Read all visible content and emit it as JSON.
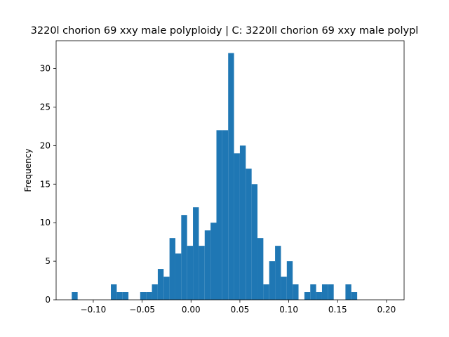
{
  "chart_data": {
    "type": "bar",
    "title": "3220l chorion 69 xxy male polyploidy | C: 3220ll chorion 69 xxy male polypl",
    "xlabel": "",
    "ylabel": "Frequency",
    "xlim": [
      -0.138,
      0.218
    ],
    "ylim": [
      0,
      33.6
    ],
    "xticks": [
      -0.1,
      -0.05,
      0.0,
      0.05,
      0.1,
      0.15,
      0.2
    ],
    "xtick_labels": [
      "−0.10",
      "−0.05",
      "0.00",
      "0.05",
      "0.10",
      "0.15",
      "0.20"
    ],
    "yticks": [
      0,
      5,
      10,
      15,
      20,
      25,
      30
    ],
    "ytick_labels": [
      "0",
      "5",
      "10",
      "15",
      "20",
      "25",
      "30"
    ],
    "bar_color": "#1f77b4",
    "grid": false,
    "bins": [
      {
        "x0": -0.122,
        "x1": -0.116,
        "value": 1
      },
      {
        "x0": -0.082,
        "x1": -0.076,
        "value": 2
      },
      {
        "x0": -0.076,
        "x1": -0.07,
        "value": 1
      },
      {
        "x0": -0.07,
        "x1": -0.064,
        "value": 1
      },
      {
        "x0": -0.052,
        "x1": -0.046,
        "value": 1
      },
      {
        "x0": -0.046,
        "x1": -0.04,
        "value": 1
      },
      {
        "x0": -0.04,
        "x1": -0.034,
        "value": 2
      },
      {
        "x0": -0.034,
        "x1": -0.028,
        "value": 4
      },
      {
        "x0": -0.028,
        "x1": -0.022,
        "value": 3
      },
      {
        "x0": -0.022,
        "x1": -0.016,
        "value": 8
      },
      {
        "x0": -0.016,
        "x1": -0.01,
        "value": 6
      },
      {
        "x0": -0.01,
        "x1": -0.004,
        "value": 11
      },
      {
        "x0": -0.004,
        "x1": 0.002,
        "value": 7
      },
      {
        "x0": 0.002,
        "x1": 0.008,
        "value": 12
      },
      {
        "x0": 0.008,
        "x1": 0.014,
        "value": 7
      },
      {
        "x0": 0.014,
        "x1": 0.02,
        "value": 9
      },
      {
        "x0": 0.02,
        "x1": 0.026,
        "value": 10
      },
      {
        "x0": 0.026,
        "x1": 0.032,
        "value": 22
      },
      {
        "x0": 0.032,
        "x1": 0.038,
        "value": 22
      },
      {
        "x0": 0.038,
        "x1": 0.044,
        "value": 32
      },
      {
        "x0": 0.044,
        "x1": 0.05,
        "value": 19
      },
      {
        "x0": 0.05,
        "x1": 0.056,
        "value": 20
      },
      {
        "x0": 0.056,
        "x1": 0.062,
        "value": 17
      },
      {
        "x0": 0.062,
        "x1": 0.068,
        "value": 15
      },
      {
        "x0": 0.068,
        "x1": 0.074,
        "value": 8
      },
      {
        "x0": 0.074,
        "x1": 0.08,
        "value": 2
      },
      {
        "x0": 0.08,
        "x1": 0.086,
        "value": 5
      },
      {
        "x0": 0.086,
        "x1": 0.092,
        "value": 7
      },
      {
        "x0": 0.092,
        "x1": 0.098,
        "value": 3
      },
      {
        "x0": 0.098,
        "x1": 0.104,
        "value": 5
      },
      {
        "x0": 0.104,
        "x1": 0.11,
        "value": 2
      },
      {
        "x0": 0.116,
        "x1": 0.122,
        "value": 1
      },
      {
        "x0": 0.122,
        "x1": 0.128,
        "value": 2
      },
      {
        "x0": 0.128,
        "x1": 0.134,
        "value": 1
      },
      {
        "x0": 0.134,
        "x1": 0.14,
        "value": 2
      },
      {
        "x0": 0.14,
        "x1": 0.146,
        "value": 2
      },
      {
        "x0": 0.158,
        "x1": 0.164,
        "value": 2
      },
      {
        "x0": 0.164,
        "x1": 0.17,
        "value": 1
      }
    ]
  }
}
